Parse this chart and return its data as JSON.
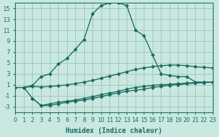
{
  "xlabel": "Humidex (Indice chaleur)",
  "bg_color": "#c8e8e0",
  "grid_color": "#a0c8c0",
  "line_color": "#1a6b60",
  "xlim": [
    0,
    23
  ],
  "ylim": [
    -4,
    16
  ],
  "xticks": [
    0,
    1,
    2,
    3,
    4,
    5,
    6,
    7,
    8,
    9,
    10,
    11,
    12,
    13,
    14,
    15,
    16,
    17,
    18,
    19,
    20,
    21,
    22,
    23
  ],
  "yticks": [
    -3,
    -1,
    1,
    3,
    5,
    7,
    9,
    11,
    13,
    15
  ],
  "series1_x": [
    0,
    1,
    2,
    3,
    4,
    5,
    6,
    7,
    8,
    9,
    10,
    11,
    12,
    13,
    14,
    15,
    16,
    17,
    18,
    19,
    20,
    21,
    22,
    23
  ],
  "series1_y": [
    0.5,
    0.5,
    0.7,
    0.6,
    0.7,
    0.8,
    1.0,
    1.2,
    1.5,
    1.8,
    2.2,
    2.6,
    3.0,
    3.4,
    3.8,
    4.1,
    4.3,
    4.5,
    4.6,
    4.6,
    4.5,
    4.3,
    4.2,
    4.1
  ],
  "series2_x": [
    1,
    2,
    3,
    4,
    5,
    6,
    7,
    8,
    9,
    10,
    11,
    12,
    13,
    14,
    15,
    16,
    17,
    18,
    19,
    20,
    21,
    22,
    23
  ],
  "series2_y": [
    0.5,
    0.9,
    2.5,
    3.0,
    4.8,
    5.8,
    7.5,
    9.3,
    14.0,
    15.5,
    16.0,
    16.0,
    15.5,
    11.0,
    10.0,
    6.5,
    3.0,
    2.7,
    2.5,
    2.5,
    1.5,
    1.5,
    1.5
  ],
  "series3_x": [
    1,
    2,
    3,
    4,
    5,
    6,
    7,
    8,
    9,
    10,
    11,
    12,
    13,
    14,
    15,
    16,
    17,
    18,
    19,
    20,
    21,
    22,
    23
  ],
  "series3_y": [
    0.5,
    -1.5,
    -2.8,
    -2.8,
    -2.5,
    -2.2,
    -2.0,
    -1.8,
    -1.5,
    -1.2,
    -0.8,
    -0.5,
    -0.2,
    0.0,
    0.2,
    0.5,
    0.7,
    0.9,
    1.0,
    1.2,
    1.3,
    1.4,
    1.5
  ],
  "series4_x": [
    2,
    3,
    4,
    5,
    6,
    7,
    8,
    9,
    10,
    11,
    12,
    13,
    14,
    15,
    16,
    17,
    18,
    19,
    20,
    21,
    22,
    23
  ],
  "series4_y": [
    -1.5,
    -2.8,
    -2.5,
    -2.2,
    -2.0,
    -1.8,
    -1.5,
    -1.2,
    -0.8,
    -0.5,
    -0.2,
    0.2,
    0.5,
    0.7,
    0.9,
    1.0,
    1.1,
    1.2,
    1.3,
    1.4,
    1.5,
    1.5
  ]
}
